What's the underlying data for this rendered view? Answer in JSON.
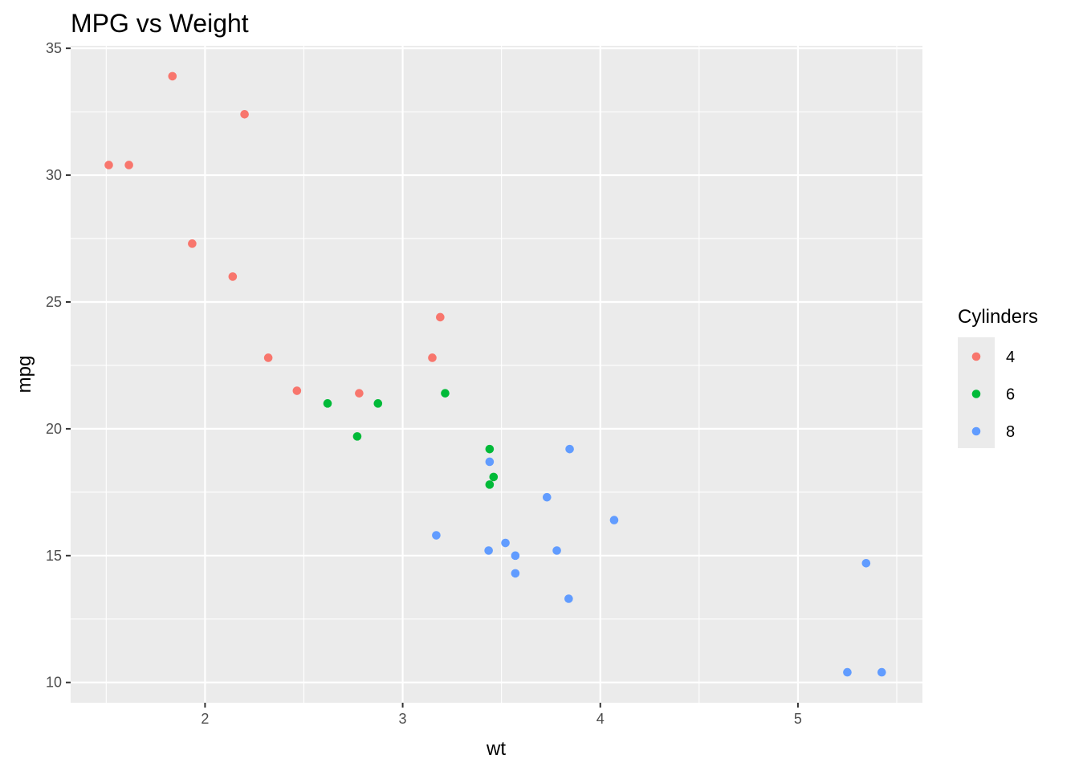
{
  "chart_data": {
    "type": "scatter",
    "title": "MPG vs Weight",
    "xlabel": "wt",
    "ylabel": "mpg",
    "xlim": [
      1.32,
      5.63
    ],
    "ylim": [
      9.2,
      35.1
    ],
    "x_ticks": [
      2,
      3,
      4,
      5
    ],
    "y_ticks": [
      10,
      15,
      20,
      25,
      30,
      35
    ],
    "grid": true,
    "legend": {
      "title": "Cylinders",
      "position": "right",
      "entries": [
        "4",
        "6",
        "8"
      ]
    },
    "series": [
      {
        "name": "4",
        "color": "#F8766D",
        "points": [
          [
            1.513,
            30.4
          ],
          [
            1.615,
            30.4
          ],
          [
            1.835,
            33.9
          ],
          [
            1.935,
            27.3
          ],
          [
            2.14,
            26.0
          ],
          [
            2.2,
            32.4
          ],
          [
            2.32,
            22.8
          ],
          [
            2.465,
            21.5
          ],
          [
            2.78,
            21.4
          ],
          [
            3.15,
            22.8
          ],
          [
            3.19,
            24.4
          ]
        ]
      },
      {
        "name": "6",
        "color": "#00BA38",
        "points": [
          [
            2.62,
            21.0
          ],
          [
            2.77,
            19.7
          ],
          [
            2.875,
            21.0
          ],
          [
            3.215,
            21.4
          ],
          [
            3.44,
            19.2
          ],
          [
            3.44,
            17.8
          ],
          [
            3.46,
            18.1
          ]
        ]
      },
      {
        "name": "8",
        "color": "#619CFF",
        "points": [
          [
            3.17,
            15.8
          ],
          [
            3.435,
            15.2
          ],
          [
            3.44,
            18.7
          ],
          [
            3.52,
            15.5
          ],
          [
            3.57,
            15.0
          ],
          [
            3.57,
            14.3
          ],
          [
            3.73,
            17.3
          ],
          [
            3.78,
            15.2
          ],
          [
            3.84,
            13.3
          ],
          [
            3.845,
            19.2
          ],
          [
            4.07,
            16.4
          ],
          [
            5.25,
            10.4
          ],
          [
            5.345,
            14.7
          ],
          [
            5.424,
            10.4
          ]
        ]
      }
    ]
  }
}
